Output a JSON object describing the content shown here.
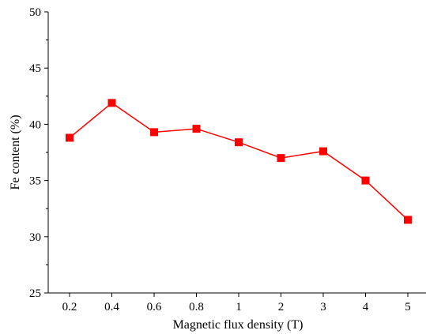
{
  "chart_data": {
    "type": "line",
    "categories": [
      "0.2",
      "0.4",
      "0.6",
      "0.8",
      "1",
      "2",
      "3",
      "4",
      "5"
    ],
    "series": [
      {
        "values": [
          38.8,
          41.9,
          39.3,
          39.6,
          38.4,
          37.0,
          37.6,
          35.0,
          31.5
        ],
        "color": "#ff0000",
        "marker": "square"
      }
    ],
    "xlabel": "Magnetic flux density (T)",
    "ylabel": "Fe content (%)",
    "ylim": [
      25,
      50
    ],
    "yticks": [
      25,
      30,
      35,
      40,
      45,
      50
    ],
    "grid": false
  }
}
